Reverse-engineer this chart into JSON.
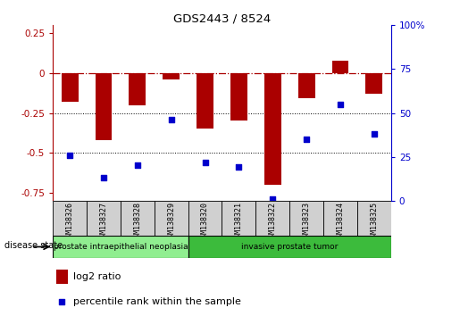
{
  "title": "GDS2443 / 8524",
  "samples": [
    "GSM138326",
    "GSM138327",
    "GSM138328",
    "GSM138329",
    "GSM138320",
    "GSM138321",
    "GSM138322",
    "GSM138323",
    "GSM138324",
    "GSM138325"
  ],
  "log2_ratio": [
    -0.18,
    -0.42,
    -0.2,
    -0.04,
    -0.35,
    -0.3,
    -0.7,
    -0.16,
    0.08,
    -0.13
  ],
  "percentile_rank": [
    26,
    13,
    20,
    46,
    22,
    19,
    1,
    35,
    55,
    38
  ],
  "disease_groups": [
    {
      "label": "prostate intraepithelial neoplasia",
      "start": 0,
      "end": 4,
      "color": "#90ee90"
    },
    {
      "label": "invasive prostate tumor",
      "start": 4,
      "end": 10,
      "color": "#3cbb3c"
    }
  ],
  "bar_color": "#aa0000",
  "dot_color": "#0000cc",
  "ylim_left": [
    -0.8,
    0.3
  ],
  "ylim_right": [
    0,
    100
  ],
  "yticks_left": [
    -0.75,
    -0.5,
    -0.25,
    0,
    0.25
  ],
  "yticks_right": [
    0,
    25,
    50,
    75,
    100
  ],
  "hline_y": 0,
  "dotted_lines": [
    -0.25,
    -0.5
  ],
  "background_color": "#ffffff",
  "plot_bg_color": "#ffffff",
  "legend_log2_label": "log2 ratio",
  "legend_pct_label": "percentile rank within the sample",
  "disease_state_label": "disease state",
  "sample_box_color": "#d0d0d0",
  "bar_width": 0.5
}
